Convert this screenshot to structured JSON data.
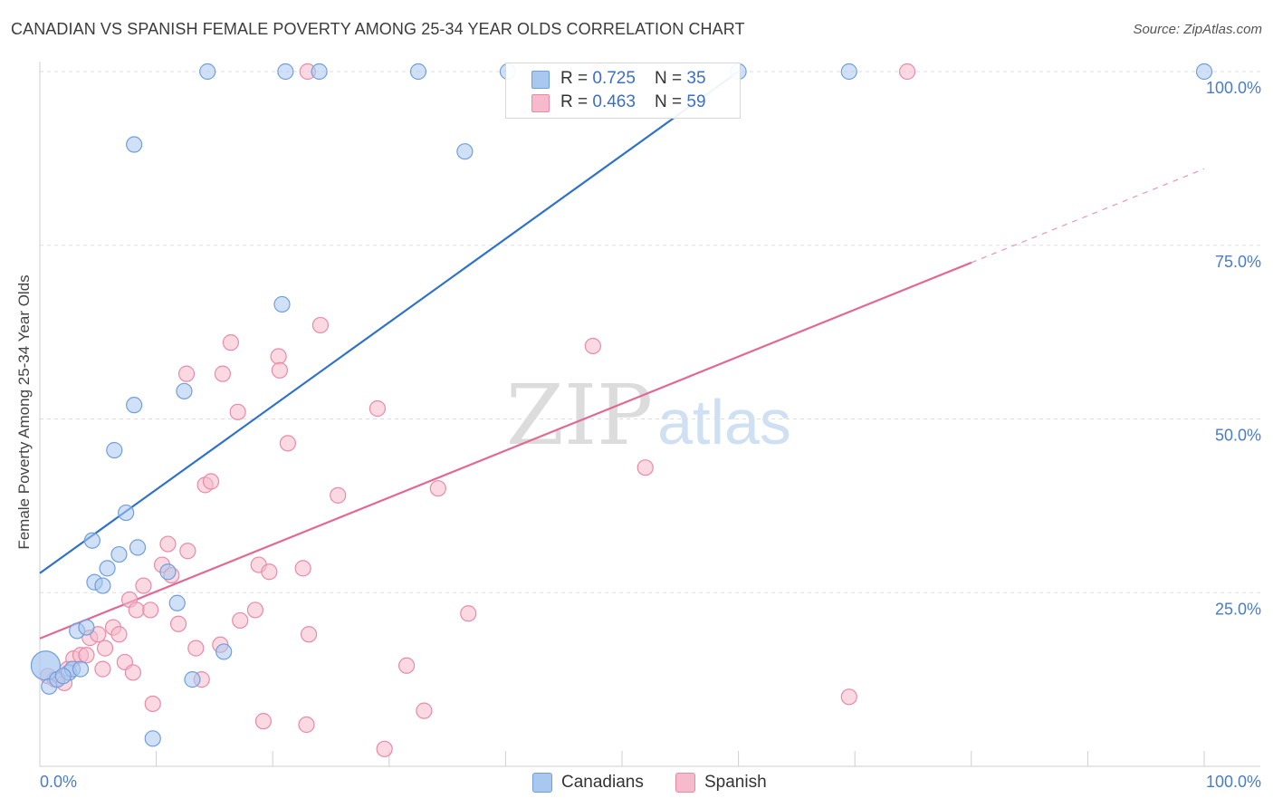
{
  "header": {
    "title": "CANADIAN VS SPANISH FEMALE POVERTY AMONG 25-34 YEAR OLDS CORRELATION CHART",
    "source": "Source: ZipAtlas.com"
  },
  "watermark": {
    "zip": "ZIP",
    "atlas": "atlas"
  },
  "legend": {
    "rows": [
      {
        "r_label": "R = ",
        "r_value": "0.725",
        "n_label": "N = ",
        "n_value": "35"
      },
      {
        "r_label": "R = ",
        "r_value": "0.463",
        "n_label": "N = ",
        "n_value": "59"
      }
    ],
    "bottom": [
      "Canadians",
      "Spanish"
    ]
  },
  "colors": {
    "canadians_fill": "#a9c8f0",
    "canadians_stroke": "#6f9fdc",
    "canadians_line": "#2f72c9",
    "spanish_fill": "#f7b9cc",
    "spanish_stroke": "#e98aa8",
    "spanish_line": "#e06a94",
    "tick_text": "#4a7cc8",
    "grid": "#dedede"
  },
  "chart_data": {
    "type": "scatter",
    "title": "CANADIAN VS SPANISH FEMALE POVERTY AMONG 25-34 YEAR OLDS CORRELATION CHART",
    "xlabel": "",
    "ylabel": "Female Poverty Among 25-34 Year Olds",
    "xlim": [
      0,
      100
    ],
    "ylim": [
      0,
      100
    ],
    "x_tick_labels": [
      "0.0%",
      "100.0%"
    ],
    "y_tick_labels": [
      "25.0%",
      "50.0%",
      "75.0%",
      "100.0%"
    ],
    "y_ticks": [
      25,
      50,
      75,
      100
    ],
    "grid": true,
    "legend_position": "top-center",
    "series": [
      {
        "name": "Canadians",
        "r": 0.725,
        "n": 35,
        "trend": {
          "x": [
            0,
            60
          ],
          "y": [
            27.8,
            100
          ]
        },
        "points": [
          {
            "x": 0.5,
            "y": 14.5,
            "big": true
          },
          {
            "x": 0.8,
            "y": 11.5
          },
          {
            "x": 1.5,
            "y": 12.5
          },
          {
            "x": 2.5,
            "y": 13.5
          },
          {
            "x": 2.8,
            "y": 14.0
          },
          {
            "x": 3.5,
            "y": 14.0
          },
          {
            "x": 3.2,
            "y": 19.5
          },
          {
            "x": 4.0,
            "y": 20.0
          },
          {
            "x": 4.5,
            "y": 32.5
          },
          {
            "x": 4.7,
            "y": 26.5
          },
          {
            "x": 5.4,
            "y": 26.0
          },
          {
            "x": 5.8,
            "y": 28.5
          },
          {
            "x": 6.8,
            "y": 30.5
          },
          {
            "x": 7.4,
            "y": 36.5
          },
          {
            "x": 6.4,
            "y": 45.5
          },
          {
            "x": 8.4,
            "y": 31.5
          },
          {
            "x": 8.1,
            "y": 52.0
          },
          {
            "x": 9.7,
            "y": 4.0
          },
          {
            "x": 11.0,
            "y": 28.0
          },
          {
            "x": 11.8,
            "y": 23.5
          },
          {
            "x": 12.4,
            "y": 54.0
          },
          {
            "x": 13.1,
            "y": 12.5
          },
          {
            "x": 15.8,
            "y": 16.5
          },
          {
            "x": 20.8,
            "y": 66.5
          },
          {
            "x": 8.1,
            "y": 89.5
          },
          {
            "x": 14.4,
            "y": 100
          },
          {
            "x": 21.1,
            "y": 100
          },
          {
            "x": 24.0,
            "y": 100
          },
          {
            "x": 32.5,
            "y": 100
          },
          {
            "x": 36.5,
            "y": 88.5
          },
          {
            "x": 40.2,
            "y": 100
          },
          {
            "x": 60.0,
            "y": 100
          },
          {
            "x": 69.5,
            "y": 100
          },
          {
            "x": 100,
            "y": 100
          },
          {
            "x": 2.0,
            "y": 13.0
          }
        ]
      },
      {
        "name": "Spanish",
        "r": 0.463,
        "n": 59,
        "trend": {
          "x": [
            0,
            80
          ],
          "y": [
            18.4,
            72.5
          ]
        },
        "trend_dashed": {
          "x": [
            80,
            100
          ],
          "y": [
            72.5,
            86.0
          ]
        },
        "points": [
          {
            "x": 0.7,
            "y": 13.0
          },
          {
            "x": 1.3,
            "y": 12.5
          },
          {
            "x": 2.1,
            "y": 12.0
          },
          {
            "x": 2.4,
            "y": 14.0
          },
          {
            "x": 2.9,
            "y": 15.5
          },
          {
            "x": 3.5,
            "y": 16.0
          },
          {
            "x": 4.0,
            "y": 16.0
          },
          {
            "x": 4.3,
            "y": 18.5
          },
          {
            "x": 5.0,
            "y": 19.0
          },
          {
            "x": 5.6,
            "y": 17.0
          },
          {
            "x": 6.3,
            "y": 20.0
          },
          {
            "x": 6.8,
            "y": 19.0
          },
          {
            "x": 7.3,
            "y": 15.0
          },
          {
            "x": 7.7,
            "y": 24.0
          },
          {
            "x": 8.3,
            "y": 22.5
          },
          {
            "x": 8.9,
            "y": 26.0
          },
          {
            "x": 9.5,
            "y": 22.5
          },
          {
            "x": 9.7,
            "y": 9.0
          },
          {
            "x": 10.5,
            "y": 29.0
          },
          {
            "x": 11.0,
            "y": 32.0
          },
          {
            "x": 11.3,
            "y": 27.5
          },
          {
            "x": 11.9,
            "y": 20.5
          },
          {
            "x": 12.7,
            "y": 31.0
          },
          {
            "x": 12.6,
            "y": 56.5
          },
          {
            "x": 13.4,
            "y": 17.0
          },
          {
            "x": 13.9,
            "y": 12.5
          },
          {
            "x": 14.2,
            "y": 40.5
          },
          {
            "x": 14.7,
            "y": 41.0
          },
          {
            "x": 15.5,
            "y": 17.5
          },
          {
            "x": 15.7,
            "y": 56.5
          },
          {
            "x": 16.4,
            "y": 61.0
          },
          {
            "x": 17.0,
            "y": 51.0
          },
          {
            "x": 17.2,
            "y": 21.0
          },
          {
            "x": 18.5,
            "y": 22.5
          },
          {
            "x": 18.8,
            "y": 29.0
          },
          {
            "x": 19.2,
            "y": 6.5
          },
          {
            "x": 19.7,
            "y": 28.0
          },
          {
            "x": 20.5,
            "y": 59.0
          },
          {
            "x": 20.6,
            "y": 57.0
          },
          {
            "x": 21.3,
            "y": 46.5
          },
          {
            "x": 22.6,
            "y": 28.5
          },
          {
            "x": 22.9,
            "y": 6.0
          },
          {
            "x": 23.1,
            "y": 19.0
          },
          {
            "x": 24.1,
            "y": 63.5
          },
          {
            "x": 25.6,
            "y": 39.0
          },
          {
            "x": 29.0,
            "y": 51.5
          },
          {
            "x": 29.6,
            "y": 2.5
          },
          {
            "x": 31.5,
            "y": 14.5
          },
          {
            "x": 33.0,
            "y": 8.0
          },
          {
            "x": 34.2,
            "y": 40.0
          },
          {
            "x": 36.8,
            "y": 22.0
          },
          {
            "x": 47.5,
            "y": 60.5
          },
          {
            "x": 48.0,
            "y": 100
          },
          {
            "x": 52.0,
            "y": 43.0
          },
          {
            "x": 69.5,
            "y": 10.0
          },
          {
            "x": 74.5,
            "y": 100
          },
          {
            "x": 23.0,
            "y": 100
          },
          {
            "x": 8.0,
            "y": 13.5
          },
          {
            "x": 5.4,
            "y": 14.0
          }
        ]
      }
    ]
  }
}
